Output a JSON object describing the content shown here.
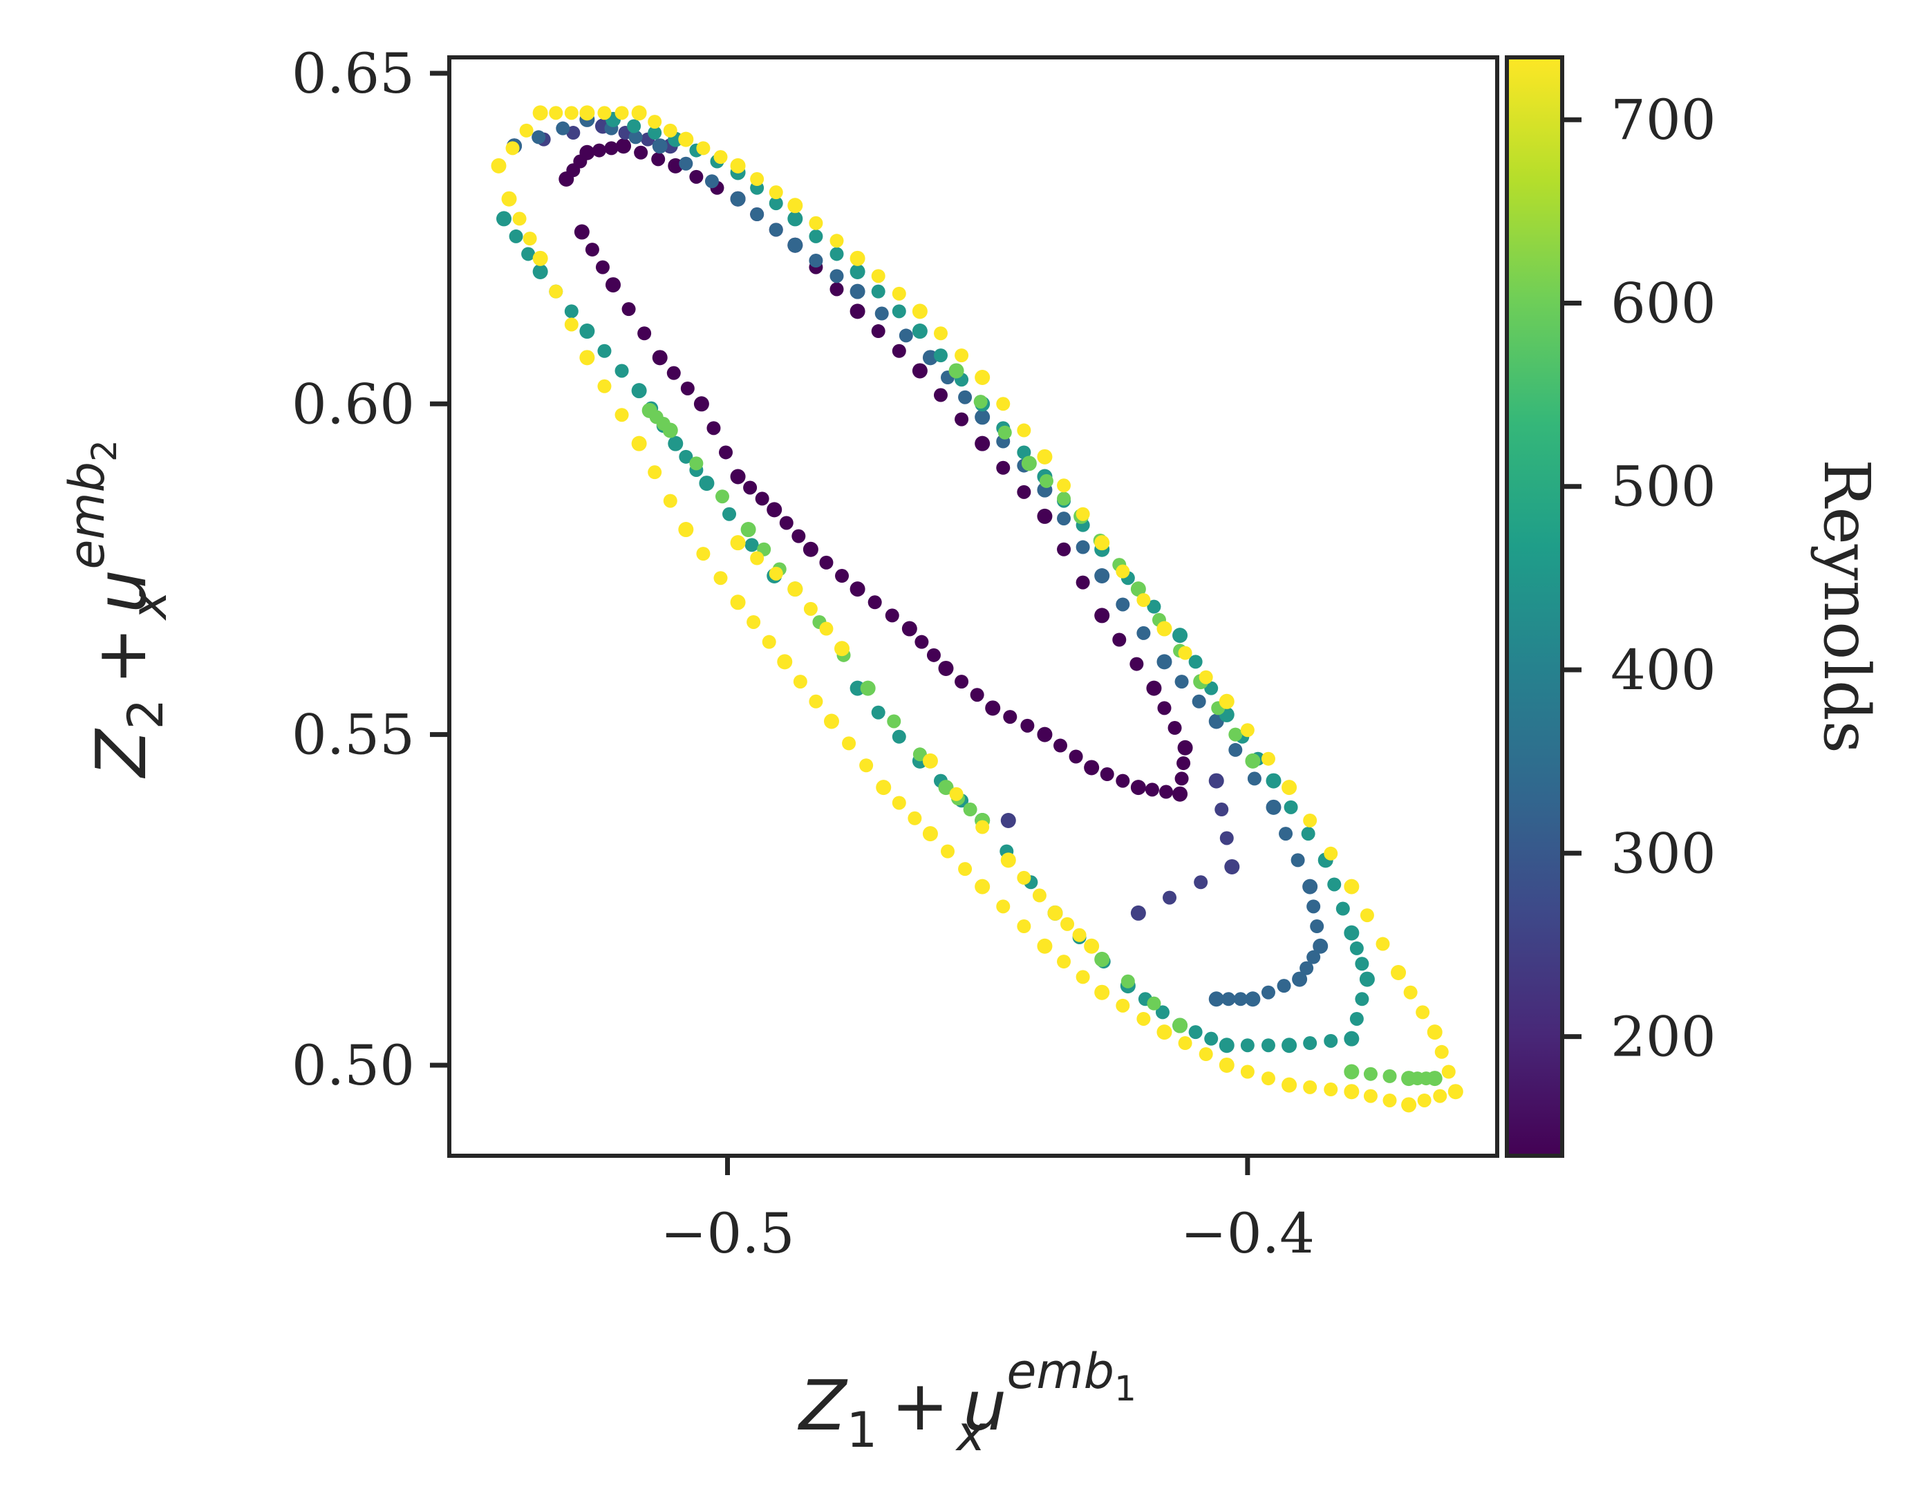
{
  "chart_data": {
    "type": "scatter",
    "title": "",
    "xlabel": {
      "Z": "Z",
      "Zsub": "1",
      "op": "+",
      "u": "u",
      "usub": "x",
      "usup": "emb",
      "usupsub": "1"
    },
    "ylabel": {
      "Z": "Z",
      "Zsub": "2",
      "op": "+",
      "u": "u",
      "usub": "x",
      "usup": "emb",
      "usupsub": "2"
    },
    "xlim": [
      -0.5535,
      -0.352
    ],
    "ylim": [
      0.4863,
      0.6524
    ],
    "xticks": [
      {
        "value": -0.5,
        "label": "−0.5"
      },
      {
        "value": -0.4,
        "label": "−0.4"
      }
    ],
    "yticks": [
      {
        "value": 0.5,
        "label": "0.50"
      },
      {
        "value": 0.55,
        "label": "0.55"
      },
      {
        "value": 0.6,
        "label": "0.60"
      },
      {
        "value": 0.65,
        "label": "0.65"
      }
    ],
    "grid": false,
    "colorbar": {
      "label": "Reynolds",
      "colormap": "viridis",
      "range": [
        135,
        734
      ],
      "ticks": [
        {
          "value": 200,
          "label": "200"
        },
        {
          "value": 300,
          "label": "300"
        },
        {
          "value": 400,
          "label": "400"
        },
        {
          "value": 500,
          "label": "500"
        },
        {
          "value": 600,
          "label": "600"
        },
        {
          "value": 700,
          "label": "700"
        }
      ],
      "colors": [
        "#440154",
        "#482878",
        "#3e4989",
        "#31688e",
        "#26828e",
        "#1f9e89",
        "#35b779",
        "#6ece58",
        "#b5de2b",
        "#fde725"
      ]
    },
    "series": [
      {
        "reynolds": 135,
        "points": [
          [
            -0.531,
            0.634
          ],
          [
            -0.527,
            0.638
          ],
          [
            -0.52,
            0.639
          ],
          [
            -0.51,
            0.636
          ],
          [
            -0.498,
            0.631
          ],
          [
            -0.487,
            0.624
          ],
          [
            -0.475,
            0.614
          ],
          [
            -0.463,
            0.605
          ],
          [
            -0.451,
            0.594
          ],
          [
            -0.439,
            0.583
          ],
          [
            -0.428,
            0.568
          ],
          [
            -0.418,
            0.557
          ],
          [
            -0.412,
            0.548
          ],
          [
            -0.413,
            0.541
          ],
          [
            -0.421,
            0.542
          ],
          [
            -0.43,
            0.545
          ],
          [
            -0.439,
            0.55
          ],
          [
            -0.449,
            0.554
          ],
          [
            -0.458,
            0.56
          ],
          [
            -0.465,
            0.566
          ],
          [
            -0.475,
            0.572
          ],
          [
            -0.484,
            0.578
          ],
          [
            -0.491,
            0.584
          ],
          [
            -0.498,
            0.589
          ],
          [
            -0.505,
            0.6
          ],
          [
            -0.513,
            0.607
          ],
          [
            -0.522,
            0.618
          ],
          [
            -0.528,
            0.626
          ]
        ]
      },
      {
        "reynolds": 250,
        "points": [
          [
            -0.446,
            0.537
          ],
          [
            -0.421,
            0.523
          ],
          [
            -0.403,
            0.53
          ],
          [
            -0.406,
            0.543
          ],
          [
            -0.541,
            0.639
          ],
          [
            -0.524,
            0.642
          ],
          [
            -0.511,
            0.639
          ]
        ]
      },
      {
        "reynolds": 330,
        "points": [
          [
            -0.541,
            0.639
          ],
          [
            -0.527,
            0.643
          ],
          [
            -0.513,
            0.639
          ],
          [
            -0.498,
            0.631
          ],
          [
            -0.487,
            0.624
          ],
          [
            -0.475,
            0.617
          ],
          [
            -0.461,
            0.607
          ],
          [
            -0.451,
            0.598
          ],
          [
            -0.439,
            0.587
          ],
          [
            -0.428,
            0.574
          ],
          [
            -0.416,
            0.561
          ],
          [
            -0.406,
            0.552
          ],
          [
            -0.395,
            0.539
          ],
          [
            -0.388,
            0.527
          ],
          [
            -0.386,
            0.518
          ],
          [
            -0.39,
            0.513
          ],
          [
            -0.399,
            0.51
          ],
          [
            -0.406,
            0.51
          ]
        ]
      },
      {
        "reynolds": 450,
        "points": [
          [
            -0.543,
            0.628
          ],
          [
            -0.536,
            0.62
          ],
          [
            -0.527,
            0.611
          ],
          [
            -0.517,
            0.602
          ],
          [
            -0.51,
            0.594
          ],
          [
            -0.504,
            0.588
          ],
          [
            -0.491,
            0.574
          ],
          [
            -0.475,
            0.557
          ],
          [
            -0.463,
            0.546
          ],
          [
            -0.451,
            0.537
          ],
          [
            -0.437,
            0.523
          ],
          [
            -0.423,
            0.512
          ],
          [
            -0.413,
            0.506
          ],
          [
            -0.404,
            0.503
          ],
          [
            -0.392,
            0.503
          ],
          [
            -0.38,
            0.504
          ],
          [
            -0.377,
            0.513
          ],
          [
            -0.38,
            0.52
          ],
          [
            -0.385,
            0.531
          ],
          [
            -0.395,
            0.543
          ],
          [
            -0.404,
            0.553
          ],
          [
            -0.413,
            0.565
          ],
          [
            -0.428,
            0.578
          ],
          [
            -0.439,
            0.589
          ],
          [
            -0.451,
            0.6
          ],
          [
            -0.463,
            0.611
          ],
          [
            -0.475,
            0.62
          ],
          [
            -0.487,
            0.628
          ],
          [
            -0.498,
            0.635
          ],
          [
            -0.51,
            0.64
          ],
          [
            -0.522,
            0.643
          ]
        ]
      },
      {
        "reynolds": 600,
        "points": [
          [
            -0.515,
            0.599
          ],
          [
            -0.511,
            0.596
          ],
          [
            -0.496,
            0.581
          ],
          [
            -0.487,
            0.572
          ],
          [
            -0.473,
            0.557
          ],
          [
            -0.458,
            0.542
          ],
          [
            -0.451,
            0.537
          ],
          [
            -0.428,
            0.516
          ],
          [
            -0.413,
            0.506
          ],
          [
            -0.38,
            0.499
          ],
          [
            -0.369,
            0.498
          ],
          [
            -0.364,
            0.498
          ],
          [
            -0.399,
            0.546
          ],
          [
            -0.409,
            0.558
          ],
          [
            -0.421,
            0.572
          ],
          [
            -0.432,
            0.583
          ],
          [
            -0.442,
            0.591
          ],
          [
            -0.456,
            0.605
          ]
        ]
      },
      {
        "reynolds": 734,
        "points": [
          [
            -0.544,
            0.636
          ],
          [
            -0.536,
            0.644
          ],
          [
            -0.527,
            0.644
          ],
          [
            -0.517,
            0.644
          ],
          [
            -0.508,
            0.64
          ],
          [
            -0.498,
            0.636
          ],
          [
            -0.487,
            0.63
          ],
          [
            -0.475,
            0.622
          ],
          [
            -0.463,
            0.614
          ],
          [
            -0.451,
            0.604
          ],
          [
            -0.439,
            0.592
          ],
          [
            -0.428,
            0.579
          ],
          [
            -0.416,
            0.566
          ],
          [
            -0.404,
            0.555
          ],
          [
            -0.392,
            0.542
          ],
          [
            -0.38,
            0.527
          ],
          [
            -0.371,
            0.514
          ],
          [
            -0.364,
            0.505
          ],
          [
            -0.36,
            0.496
          ],
          [
            -0.369,
            0.494
          ],
          [
            -0.38,
            0.496
          ],
          [
            -0.392,
            0.497
          ],
          [
            -0.404,
            0.5
          ],
          [
            -0.416,
            0.505
          ],
          [
            -0.428,
            0.511
          ],
          [
            -0.439,
            0.518
          ],
          [
            -0.451,
            0.527
          ],
          [
            -0.461,
            0.535
          ],
          [
            -0.47,
            0.542
          ],
          [
            -0.48,
            0.552
          ],
          [
            -0.489,
            0.561
          ],
          [
            -0.498,
            0.57
          ],
          [
            -0.508,
            0.581
          ],
          [
            -0.517,
            0.594
          ],
          [
            -0.527,
            0.607
          ],
          [
            -0.536,
            0.622
          ],
          [
            -0.542,
            0.631
          ],
          [
            -0.498,
            0.579
          ],
          [
            -0.487,
            0.572
          ],
          [
            -0.478,
            0.563
          ],
          [
            -0.461,
            0.546
          ],
          [
            -0.446,
            0.531
          ],
          [
            -0.437,
            0.523
          ],
          [
            -0.43,
            0.518
          ]
        ]
      }
    ]
  }
}
